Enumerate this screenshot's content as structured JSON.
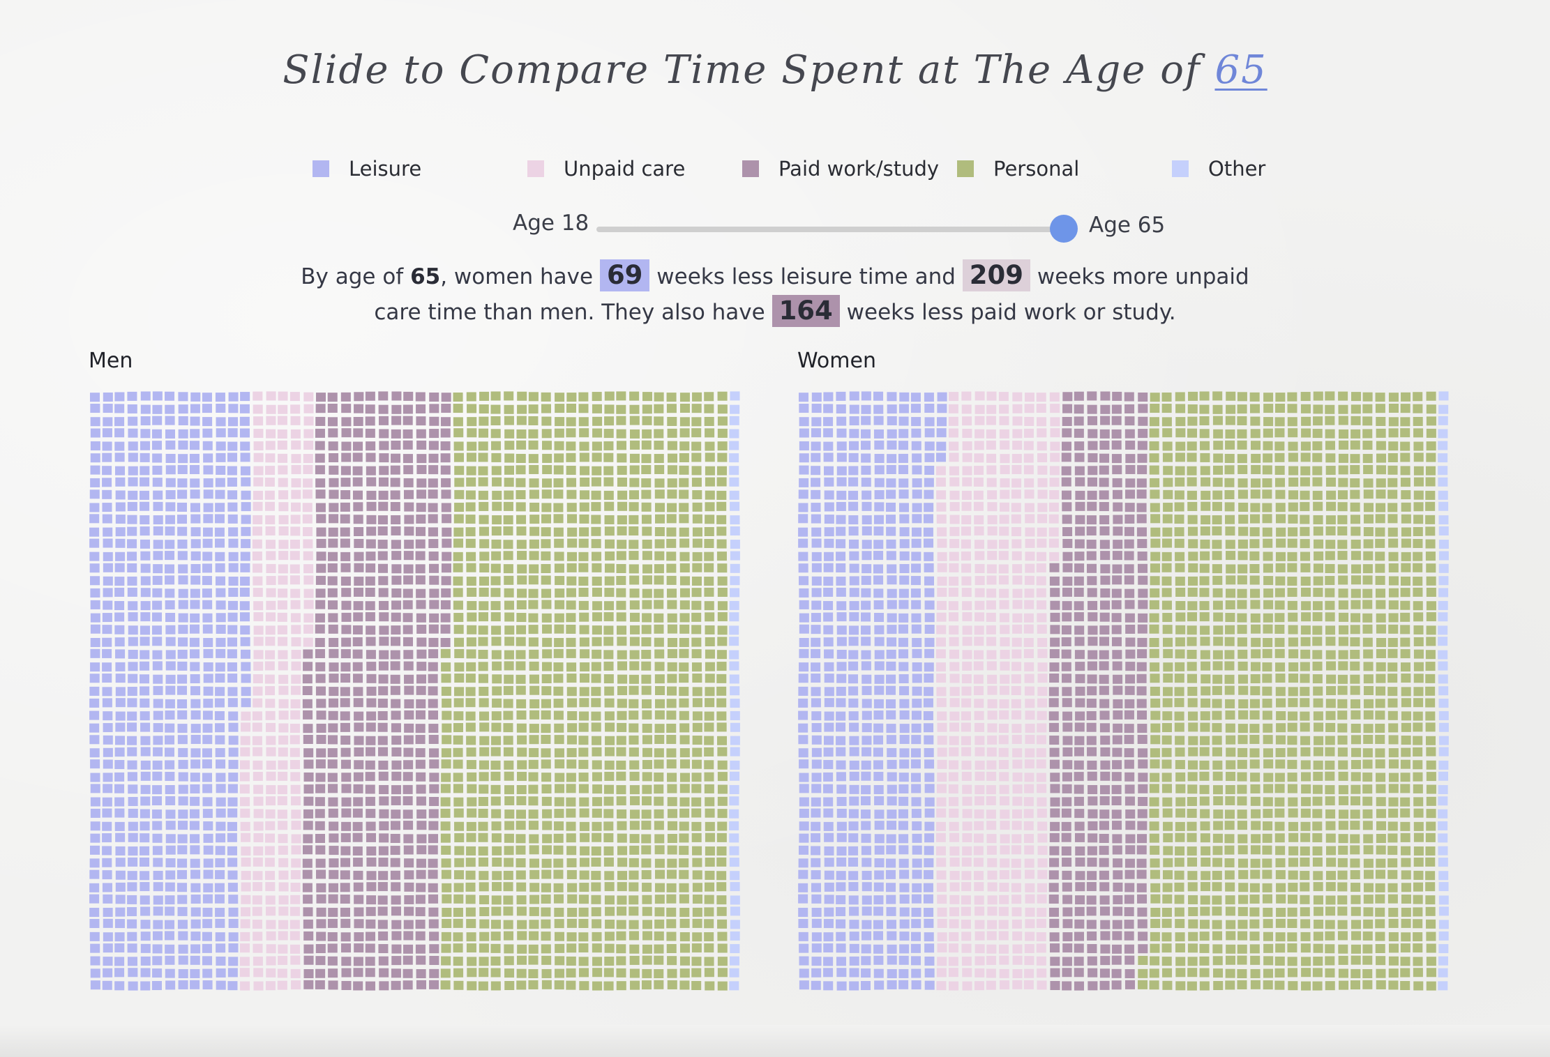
{
  "title": {
    "prefix": "Slide to Compare Time Spent at The Age of",
    "age": "65"
  },
  "legend": [
    {
      "label": "Leisure",
      "color": "#b2b6f1"
    },
    {
      "label": "Unpaid care",
      "color": "#ecd3e4"
    },
    {
      "label": "Paid work/study",
      "color": "#ad92ab"
    },
    {
      "label": "Personal",
      "color": "#b0bc7d"
    },
    {
      "label": "Other",
      "color": "#c5d0fc"
    }
  ],
  "slider": {
    "min_label": "Age 18",
    "max_label": "Age 65",
    "value_fraction": 1.0
  },
  "summary": {
    "t1": "By age of ",
    "age": "65",
    "t2": ", women have ",
    "leisure_diff": "69",
    "t3": " weeks less leisure time and ",
    "care_diff": "209",
    "t4": " weeks more unpaid",
    "t5": "care time than men. They also have ",
    "work_diff": "164",
    "t6": " weeks less paid work or study."
  },
  "chart_data": [
    {
      "type": "waffle",
      "label": "Men",
      "grid": {
        "cols": 52,
        "rows": 49
      },
      "segments": [
        {
          "name": "Leisure",
          "weeks": 614
        },
        {
          "name": "Unpaid care",
          "weeks": 240
        },
        {
          "name": "Paid work/study",
          "weeks": 539
        },
        {
          "name": "Personal",
          "weeks": 1106
        },
        {
          "name": "Other",
          "weeks": 49
        }
      ]
    },
    {
      "type": "waffle",
      "label": "Women",
      "grid": {
        "cols": 52,
        "rows": 49
      },
      "segments": [
        {
          "name": "Leisure",
          "weeks": 545
        },
        {
          "name": "Unpaid care",
          "weeks": 449
        },
        {
          "name": "Paid work/study",
          "weeks": 375
        },
        {
          "name": "Personal",
          "weeks": 1130
        },
        {
          "name": "Other",
          "weeks": 49
        }
      ]
    }
  ]
}
